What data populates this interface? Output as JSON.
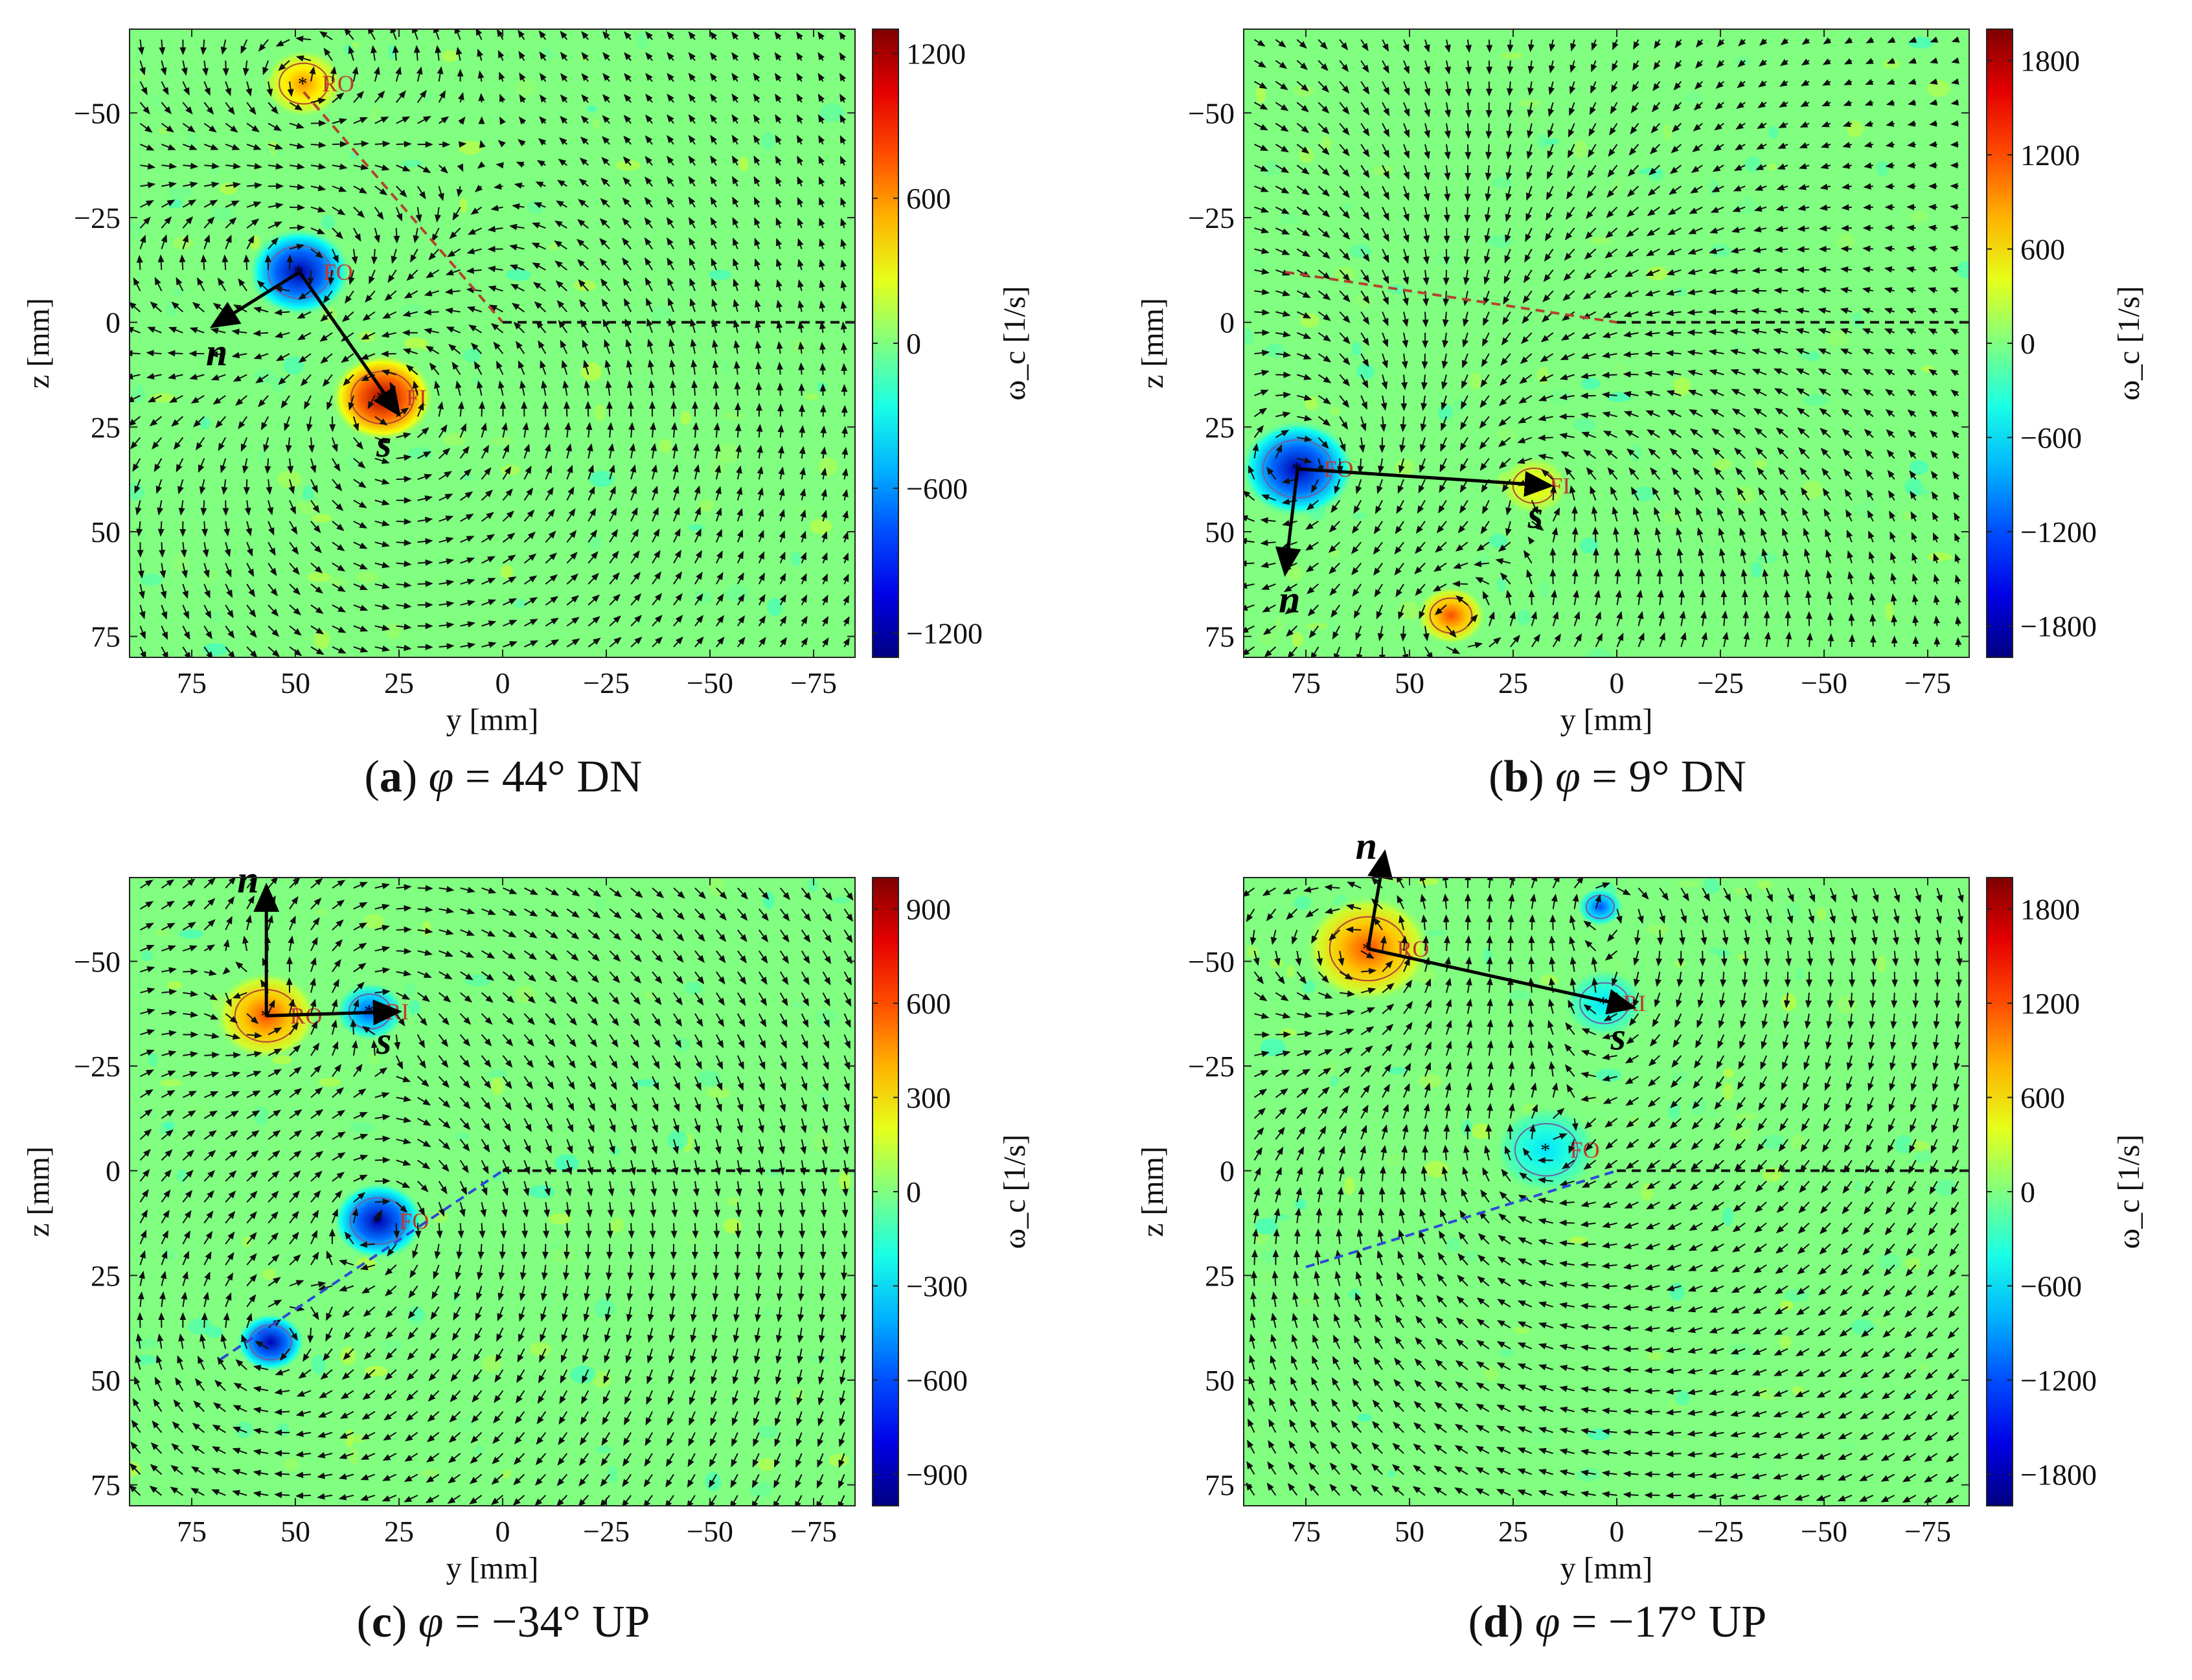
{
  "figure": {
    "panels": [
      {
        "id": "a",
        "letter": "a",
        "equation": "= 44° DN",
        "symbol": "φ"
      },
      {
        "id": "b",
        "letter": "b",
        "equation": "= 9° DN",
        "symbol": "φ"
      },
      {
        "id": "c",
        "letter": "c",
        "equation": "= −34° UP",
        "symbol": "φ"
      },
      {
        "id": "d",
        "letter": "d",
        "equation": "= −17° UP",
        "symbol": "φ"
      }
    ]
  },
  "chart_data": [
    {
      "type": "heatmap",
      "panel": "a",
      "title": "(a) φ = 44° DN",
      "xlabel": "y  [mm]",
      "ylabel": "z  [mm]",
      "x_ticks": [
        75,
        50,
        25,
        0,
        -25,
        -50,
        -75
      ],
      "y_ticks": [
        -50,
        -25,
        0,
        25,
        50,
        75
      ],
      "xlim": [
        90,
        -85
      ],
      "ylim": [
        -70,
        80
      ],
      "colorbar": {
        "label": "ω_c [1/s]",
        "range": [
          -1300,
          1300
        ],
        "ticks": [
          1200,
          600,
          0,
          -600,
          -1200
        ]
      },
      "vortices": [
        {
          "label": "RO",
          "y": 48,
          "z": -57,
          "sign": "positive",
          "strength": 600,
          "r": 7
        },
        {
          "label": "FO",
          "y": 49,
          "z": -12,
          "sign": "negative",
          "strength": -1200,
          "r": 9
        },
        {
          "label": "FI",
          "y": 29,
          "z": 18,
          "sign": "positive",
          "strength": 1200,
          "r": 9
        }
      ],
      "coordinate_axes": {
        "origin": [
          49,
          -12
        ],
        "n": [
          70,
          1
        ],
        "s": [
          25,
          22
        ],
        "n_label": "n",
        "s_label": "s"
      },
      "reference_lines": [
        {
          "style": "dashed",
          "color": "#b5422f",
          "points": [
            [
              48,
              -55
            ],
            [
              0,
              0
            ]
          ]
        },
        {
          "style": "dashed",
          "color": "#111111",
          "points": [
            [
              0,
              0
            ],
            [
              -85,
              0
            ]
          ]
        }
      ]
    },
    {
      "type": "heatmap",
      "panel": "b",
      "title": "(b) φ = 9° DN",
      "xlabel": "y  [mm]",
      "ylabel": "z  [mm]",
      "x_ticks": [
        75,
        50,
        25,
        0,
        -25,
        -50,
        -75
      ],
      "y_ticks": [
        -50,
        -25,
        0,
        25,
        50,
        75
      ],
      "xlim": [
        90,
        -85
      ],
      "ylim": [
        -70,
        80
      ],
      "colorbar": {
        "label": "ω_c [1/s]",
        "range": [
          -2000,
          2000
        ],
        "ticks": [
          1800,
          1200,
          600,
          0,
          -600,
          -1200,
          -1800
        ]
      },
      "vortices": [
        {
          "label": "FO",
          "y": 77,
          "z": 35,
          "sign": "negative",
          "strength": -1800,
          "r": 10
        },
        {
          "label": "FI",
          "y": 20,
          "z": 39,
          "sign": "positive",
          "strength": 600,
          "r": 6
        },
        {
          "label": "",
          "y": 40,
          "z": 70,
          "sign": "positive",
          "strength": 1200,
          "r": 6
        }
      ],
      "coordinate_axes": {
        "origin": [
          77,
          35
        ],
        "n": [
          80,
          60
        ],
        "s": [
          16,
          39
        ],
        "n_label": "n",
        "s_label": "s"
      },
      "reference_lines": [
        {
          "style": "dashed",
          "color": "#b5422f",
          "points": [
            [
              80,
              -12
            ],
            [
              0,
              0
            ]
          ]
        },
        {
          "style": "dashed",
          "color": "#111111",
          "points": [
            [
              0,
              0
            ],
            [
              -85,
              0
            ]
          ]
        }
      ]
    },
    {
      "type": "heatmap",
      "panel": "c",
      "title": "(c) φ = −34° UP",
      "xlabel": "y  [mm]",
      "ylabel": "z  [mm]",
      "x_ticks": [
        75,
        50,
        25,
        0,
        -25,
        -50,
        -75
      ],
      "y_ticks": [
        -50,
        -25,
        0,
        25,
        50,
        75
      ],
      "xlim": [
        90,
        -85
      ],
      "ylim": [
        -70,
        80
      ],
      "colorbar": {
        "label": "ω_c [1/s]",
        "range": [
          -1000,
          1000
        ],
        "ticks": [
          900,
          600,
          300,
          0,
          -300,
          -600,
          -900
        ]
      },
      "vortices": [
        {
          "label": "RO",
          "y": 57,
          "z": -37,
          "sign": "positive",
          "strength": 600,
          "r": 9
        },
        {
          "label": "RI",
          "y": 32,
          "z": -38,
          "sign": "negative",
          "strength": -600,
          "r": 6
        },
        {
          "label": "FO",
          "y": 30,
          "z": 12,
          "sign": "negative",
          "strength": -900,
          "r": 8
        },
        {
          "label": "",
          "y": 56,
          "z": 41,
          "sign": "negative",
          "strength": -900,
          "r": 6
        }
      ],
      "coordinate_axes": {
        "origin": [
          57,
          -37
        ],
        "n": [
          57,
          -68
        ],
        "s": [
          25,
          -38
        ],
        "n_label": "n",
        "s_label": "s"
      },
      "reference_lines": [
        {
          "style": "dashed",
          "color": "#2b4bd6",
          "points": [
            [
              68,
              45
            ],
            [
              0,
              0
            ]
          ]
        },
        {
          "style": "dashed",
          "color": "#111111",
          "points": [
            [
              0,
              0
            ],
            [
              -85,
              0
            ]
          ]
        }
      ]
    },
    {
      "type": "heatmap",
      "panel": "d",
      "title": "(d) φ = −17° UP",
      "xlabel": "y  [mm]",
      "ylabel": "z  [mm]",
      "x_ticks": [
        75,
        50,
        25,
        0,
        -25,
        -50,
        -75
      ],
      "y_ticks": [
        -50,
        -25,
        0,
        25,
        50,
        75
      ],
      "xlim": [
        90,
        -85
      ],
      "ylim": [
        -70,
        80
      ],
      "colorbar": {
        "label": "ω_c [1/s]",
        "range": [
          -2000,
          2000
        ],
        "ticks": [
          1800,
          1200,
          600,
          0,
          -600,
          -1200,
          -1800
        ]
      },
      "vortices": [
        {
          "label": "RO",
          "y": 60,
          "z": -53,
          "sign": "positive",
          "strength": 1200,
          "r": 11
        },
        {
          "label": "RI",
          "y": 3,
          "z": -40,
          "sign": "negative",
          "strength": -600,
          "r": 7
        },
        {
          "label": "FO",
          "y": 17,
          "z": -5,
          "sign": "negative",
          "strength": -600,
          "r": 9
        },
        {
          "label": "",
          "y": 4,
          "z": -63,
          "sign": "negative",
          "strength": -1200,
          "r": 4
        }
      ],
      "coordinate_axes": {
        "origin": [
          60,
          -53
        ],
        "n": [
          56,
          -76
        ],
        "s": [
          -4,
          -39
        ],
        "n_label": "n",
        "s_label": "s"
      },
      "reference_lines": [
        {
          "style": "dashed",
          "color": "#2b4bd6",
          "points": [
            [
              75,
              23
            ],
            [
              0,
              0
            ]
          ]
        },
        {
          "style": "dashed",
          "color": "#111111",
          "points": [
            [
              0,
              0
            ],
            [
              -85,
              0
            ]
          ]
        }
      ]
    }
  ]
}
